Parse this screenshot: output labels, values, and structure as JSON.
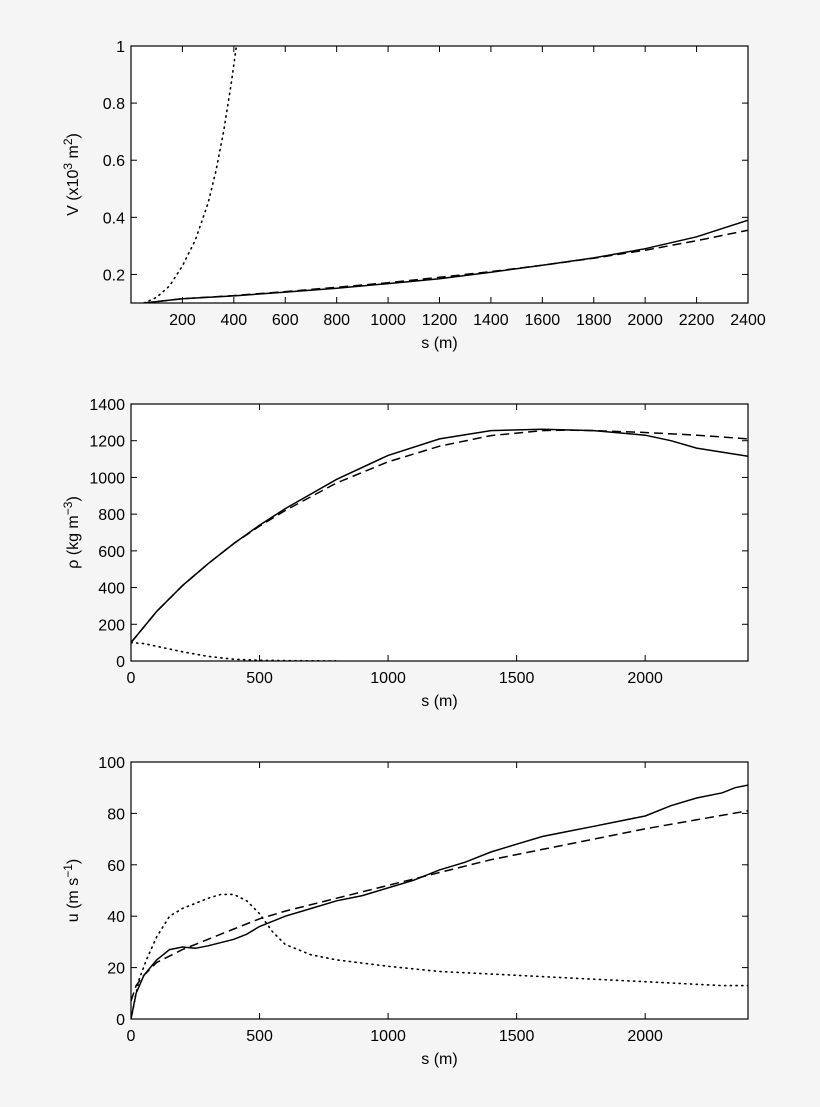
{
  "chart_data": [
    {
      "type": "line",
      "xlabel": "s (m)",
      "ylabel": {
        "base": "V (x10",
        "exp1": "3",
        "mid": " m",
        "exp2": "2",
        "end": ")"
      },
      "xlim": [
        0,
        2400
      ],
      "ylim": [
        0.1,
        1.0
      ],
      "xticks": [
        200,
        400,
        600,
        800,
        1000,
        1200,
        1400,
        1600,
        1800,
        2000,
        2200,
        2400
      ],
      "yticks": [
        0.2,
        0.4,
        0.6,
        0.8,
        1
      ],
      "series": [
        {
          "style": "solid",
          "x": [
            50,
            200,
            400,
            600,
            800,
            1000,
            1200,
            1400,
            1600,
            1800,
            2000,
            2200,
            2400
          ],
          "y": [
            0.1,
            0.115,
            0.125,
            0.138,
            0.152,
            0.168,
            0.185,
            0.208,
            0.232,
            0.258,
            0.29,
            0.332,
            0.39
          ]
        },
        {
          "style": "dashed",
          "x": [
            50,
            200,
            400,
            600,
            800,
            1000,
            1200,
            1400,
            1600,
            1800,
            2000,
            2200,
            2400
          ],
          "y": [
            0.1,
            0.115,
            0.126,
            0.14,
            0.155,
            0.171,
            0.19,
            0.21,
            0.232,
            0.257,
            0.285,
            0.318,
            0.355
          ]
        },
        {
          "style": "dotted",
          "x": [
            50,
            100,
            150,
            200,
            250,
            300,
            330,
            360,
            390,
            410
          ],
          "y": [
            0.1,
            0.12,
            0.16,
            0.23,
            0.32,
            0.45,
            0.56,
            0.7,
            0.87,
            1.0
          ]
        }
      ]
    },
    {
      "type": "line",
      "xlabel": "s (m)",
      "ylabel": {
        "base": "ρ (kg m",
        "exp1": "−3",
        "mid": "",
        "exp2": "",
        "end": ")"
      },
      "xlim": [
        0,
        2400
      ],
      "ylim": [
        0,
        1400
      ],
      "xticks": [
        0,
        500,
        1000,
        1500,
        2000
      ],
      "yticks": [
        0,
        200,
        400,
        600,
        800,
        1000,
        1200,
        1400
      ],
      "series": [
        {
          "style": "solid",
          "x": [
            0,
            100,
            200,
            300,
            400,
            500,
            600,
            800,
            1000,
            1200,
            1400,
            1600,
            1800,
            2000,
            2100,
            2200,
            2400
          ],
          "y": [
            100,
            270,
            410,
            530,
            640,
            740,
            830,
            990,
            1120,
            1210,
            1255,
            1262,
            1255,
            1230,
            1200,
            1160,
            1115
          ]
        },
        {
          "style": "dashed",
          "x": [
            0,
            100,
            200,
            300,
            400,
            500,
            600,
            800,
            1000,
            1200,
            1400,
            1600,
            1700,
            1800,
            2000,
            2200,
            2400
          ],
          "y": [
            100,
            270,
            410,
            530,
            640,
            735,
            820,
            970,
            1085,
            1170,
            1228,
            1255,
            1258,
            1255,
            1245,
            1230,
            1210
          ]
        },
        {
          "style": "dotted",
          "x": [
            0,
            50,
            100,
            200,
            300,
            400,
            500,
            600,
            700,
            800
          ],
          "y": [
            100,
            95,
            80,
            50,
            25,
            10,
            4,
            2,
            1,
            0
          ]
        }
      ]
    },
    {
      "type": "line",
      "xlabel": "s (m)",
      "ylabel": {
        "base": "u (m s",
        "exp1": "−1",
        "mid": "",
        "exp2": "",
        "end": ")"
      },
      "xlim": [
        0,
        2400
      ],
      "ylim": [
        0,
        100
      ],
      "xticks": [
        0,
        500,
        1000,
        1500,
        2000
      ],
      "yticks": [
        0,
        20,
        40,
        60,
        80,
        100
      ],
      "series": [
        {
          "style": "solid",
          "x": [
            0,
            20,
            50,
            100,
            150,
            200,
            250,
            300,
            400,
            450,
            500,
            600,
            700,
            800,
            900,
            1000,
            1100,
            1200,
            1300,
            1400,
            1500,
            1600,
            1700,
            1800,
            1900,
            2000,
            2100,
            2200,
            2300,
            2350,
            2400
          ],
          "y": [
            0,
            10,
            17,
            23,
            27,
            28,
            27.5,
            28.5,
            31,
            33,
            36,
            40,
            43,
            46,
            48,
            51,
            54,
            58,
            61,
            65,
            68,
            71,
            73,
            75,
            77,
            79,
            83,
            86,
            88,
            90,
            91
          ]
        },
        {
          "style": "dashed",
          "x": [
            0,
            20,
            50,
            100,
            200,
            300,
            400,
            500,
            600,
            800,
            1000,
            1200,
            1400,
            1600,
            1800,
            2000,
            2200,
            2400
          ],
          "y": [
            7,
            13,
            17,
            22,
            27,
            31,
            35,
            39,
            42,
            47,
            52,
            57,
            62,
            66,
            70,
            74,
            77.5,
            81
          ]
        },
        {
          "style": "dotted",
          "x": [
            0,
            30,
            60,
            100,
            150,
            200,
            250,
            300,
            350,
            400,
            450,
            500,
            550,
            600,
            700,
            800,
            1000,
            1200,
            1400,
            1600,
            1800,
            2000,
            2200,
            2300,
            2400
          ],
          "y": [
            0,
            15,
            23,
            32,
            40,
            43,
            45,
            47,
            48.5,
            48.5,
            46,
            41,
            34,
            29,
            25,
            23,
            20.5,
            18.5,
            17.5,
            16.5,
            15.5,
            14.5,
            13.5,
            13,
            13
          ]
        }
      ]
    }
  ]
}
